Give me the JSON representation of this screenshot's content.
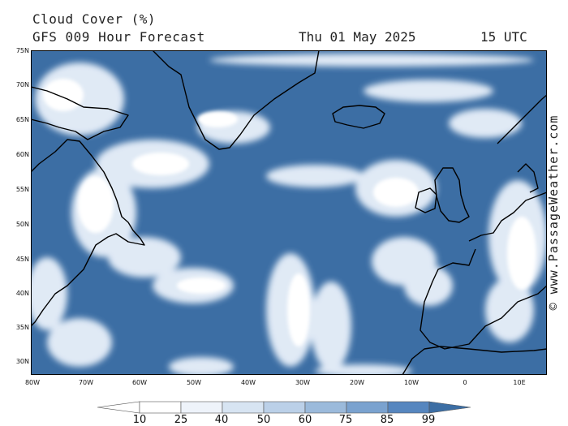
{
  "title": "Cloud Cover (%)",
  "subtitle": "GFS 009 Hour Forecast",
  "date": "Thu 01 May 2025",
  "utc": "15 UTC",
  "credit": "© www.PassageWeather.com",
  "colors": {
    "ocean": "#3c6ea4",
    "cloud_light": "#e9f1fa",
    "cloud_white": "#ffffff",
    "coast": "#000000"
  },
  "lat_labels": [
    "75N",
    "70N",
    "65N",
    "60N",
    "55N",
    "50N",
    "45N",
    "40N",
    "35N",
    "30N"
  ],
  "lon_labels": [
    "80W",
    "70W",
    "60W",
    "50W",
    "40W",
    "30W",
    "20W",
    "10W",
    "0",
    "10E"
  ],
  "colorbar": {
    "labels": [
      "10",
      "25",
      "40",
      "50",
      "60",
      "75",
      "85",
      "99"
    ],
    "colors": [
      "#ffffff",
      "#ffffff",
      "#eef3fa",
      "#d7e4f2",
      "#bbd0e8",
      "#9bbadb",
      "#7aa2cf",
      "#5686bf",
      "#3c6ea4"
    ]
  }
}
